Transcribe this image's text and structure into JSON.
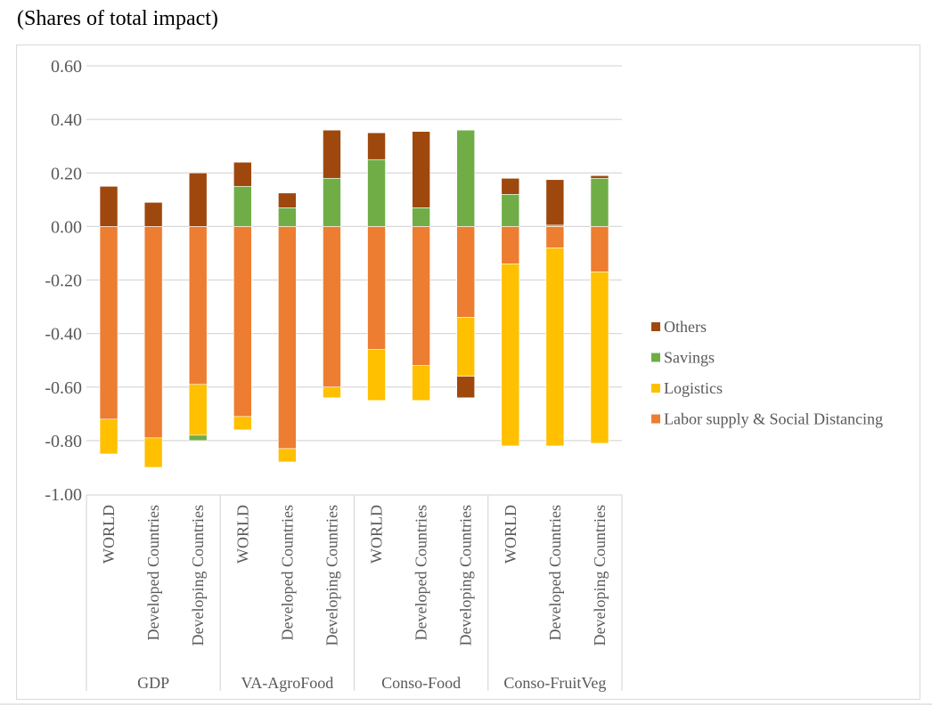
{
  "subtitle": "(Shares of total impact)",
  "chart_data": {
    "type": "bar",
    "stacked": true,
    "title": "",
    "subtitle": "(Shares of total impact)",
    "xlabel": "",
    "ylabel": "",
    "ylim": [
      -1.0,
      0.6
    ],
    "yticks": [
      0.6,
      0.4,
      0.2,
      0.0,
      -0.2,
      -0.4,
      -0.6,
      -0.8,
      -1.0
    ],
    "ytick_labels": [
      "0.60",
      "0.40",
      "0.20",
      "0.00",
      "-0.20",
      "-0.40",
      "-0.60",
      "-0.80",
      "-1.00"
    ],
    "grid": true,
    "legend_position": "right",
    "groups": [
      {
        "name": "GDP",
        "categories": [
          "WORLD",
          "Developed Countries",
          "Developing Countries"
        ]
      },
      {
        "name": "VA-AgroFood",
        "categories": [
          "WORLD",
          "Developed Countries",
          "Developing Countries"
        ]
      },
      {
        "name": "Conso-Food",
        "categories": [
          "WORLD",
          "Developed Countries",
          "Developing Countries"
        ]
      },
      {
        "name": "Conso-FruitVeg",
        "categories": [
          "WORLD",
          "Developed Countries",
          "Developing Countries"
        ]
      }
    ],
    "series": [
      {
        "name": "Labor supply & Social Distancing",
        "color": "#ED7D31",
        "values": [
          -0.72,
          -0.79,
          -0.59,
          -0.71,
          -0.83,
          -0.6,
          -0.46,
          -0.52,
          -0.34,
          -0.14,
          -0.08,
          -0.17
        ]
      },
      {
        "name": "Logistics",
        "color": "#FFC000",
        "values": [
          -0.13,
          -0.11,
          -0.19,
          -0.05,
          -0.05,
          -0.04,
          -0.19,
          -0.13,
          -0.22,
          -0.68,
          -0.74,
          -0.64
        ]
      },
      {
        "name": "Savings",
        "color": "#70AD47",
        "values": [
          0.0,
          0.0,
          -0.02,
          0.15,
          0.07,
          0.18,
          0.25,
          0.07,
          0.36,
          0.12,
          0.005,
          0.18
        ]
      },
      {
        "name": "Others",
        "color": "#9E480E",
        "values": [
          0.15,
          0.09,
          0.2,
          0.09,
          0.055,
          0.18,
          0.1,
          0.285,
          -0.08,
          0.06,
          0.17,
          0.01
        ]
      }
    ],
    "legend_order": [
      "Others",
      "Savings",
      "Logistics",
      "Labor supply & Social Distancing"
    ]
  }
}
